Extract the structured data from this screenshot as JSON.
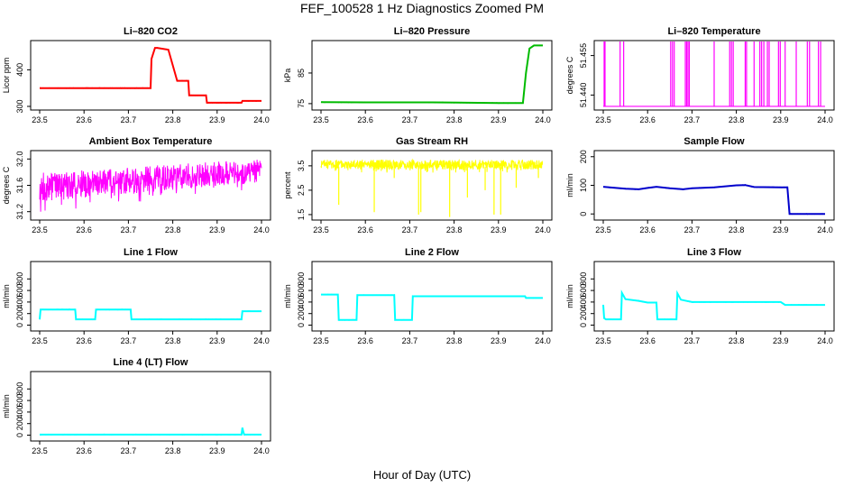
{
  "figure": {
    "title": "FEF_100528  1 Hz Diagnostics Zoomed PM",
    "xlabel": "Hour of Day (UTC)"
  },
  "chart_data": [
    {
      "type": "line",
      "title": "Li–820 CO2",
      "ylabel": "Licor ppm",
      "color": "#ff0000",
      "xlim": [
        23.5,
        24.0
      ],
      "ylim": [
        295,
        475
      ],
      "x_ticks": [
        "23.5",
        "23.6",
        "23.7",
        "23.8",
        "23.9",
        "24.0"
      ],
      "y_ticks": [
        {
          "v": 300,
          "t": "300"
        },
        {
          "v": 400,
          "t": "400"
        }
      ],
      "series": [
        {
          "x": [
            23.5,
            23.75,
            23.752,
            23.76,
            23.765,
            23.79,
            23.81,
            23.812,
            23.835,
            23.837,
            23.875,
            23.877,
            23.955,
            23.957,
            24.0
          ],
          "y": [
            350,
            350,
            430,
            460,
            460,
            455,
            370,
            370,
            370,
            330,
            330,
            310,
            310,
            315,
            315
          ]
        }
      ]
    },
    {
      "type": "line",
      "title": "Li–820 Pressure",
      "ylabel": "kPa",
      "color": "#00bb00",
      "xlim": [
        23.5,
        24.0
      ],
      "ylim": [
        73.5,
        95
      ],
      "x_ticks": [
        "23.5",
        "23.6",
        "23.7",
        "23.8",
        "23.9",
        "24.0"
      ],
      "y_ticks": [
        {
          "v": 75,
          "t": "75"
        },
        {
          "v": 85,
          "t": "85"
        }
      ],
      "series": [
        {
          "x": [
            23.5,
            23.6,
            23.75,
            23.9,
            23.955,
            23.962,
            23.97,
            23.98,
            24.0
          ],
          "y": [
            75.5,
            75.4,
            75.4,
            75.2,
            75.2,
            85,
            93,
            94,
            94
          ]
        }
      ]
    },
    {
      "type": "line",
      "title": "Li–820 Temperature",
      "ylabel": "degrees C",
      "color": "#ff00ff",
      "xlim": [
        23.5,
        24.0
      ],
      "ylim": [
        51.435,
        51.46
      ],
      "x_ticks": [
        "23.5",
        "23.6",
        "23.7",
        "23.8",
        "23.9",
        "24.0"
      ],
      "y_ticks": [
        {
          "v": 51.44,
          "t": "51.440"
        },
        {
          "v": 51.455,
          "t": "51.455"
        }
      ],
      "spike_positions": [
        23.502,
        23.504,
        23.538,
        23.546,
        23.652,
        23.656,
        23.66,
        23.685,
        23.688,
        23.691,
        23.694,
        23.75,
        23.785,
        23.789,
        23.793,
        23.82,
        23.823,
        23.84,
        23.853,
        23.857,
        23.862,
        23.87,
        23.874,
        23.895,
        23.899,
        23.91,
        23.935,
        23.96,
        23.965,
        23.985,
        23.99
      ]
    },
    {
      "type": "line",
      "title": "Ambient Box Temperature",
      "ylabel": "degrees C",
      "color": "#ff00ff",
      "xlim": [
        23.5,
        24.0
      ],
      "ylim": [
        31.1,
        32.1
      ],
      "x_ticks": [
        "23.5",
        "23.6",
        "23.7",
        "23.8",
        "23.9",
        "24.0"
      ],
      "y_ticks": [
        {
          "v": 31.2,
          "t": "31.2"
        },
        {
          "v": 31.6,
          "t": "31.6"
        },
        {
          "v": 32.0,
          "t": "32.0"
        }
      ],
      "noise_band": {
        "start": [
          31.35,
          31.8
        ],
        "end": [
          31.65,
          32.0
        ]
      }
    },
    {
      "type": "line",
      "title": "Gas Stream RH",
      "ylabel": "percent",
      "color": "#ffff00",
      "xlim": [
        23.5,
        24.0
      ],
      "ylim": [
        1.35,
        4.05
      ],
      "x_ticks": [
        "23.5",
        "23.6",
        "23.7",
        "23.8",
        "23.9",
        "24.0"
      ],
      "y_ticks": [
        {
          "v": 1.5,
          "t": "1.5"
        },
        {
          "v": 2.5,
          "t": "2.5"
        },
        {
          "v": 3.5,
          "t": "3.5"
        }
      ],
      "noise_band": {
        "start": [
          3.35,
          3.75
        ],
        "end": [
          3.35,
          3.75
        ]
      },
      "dips": [
        [
          23.54,
          1.9
        ],
        [
          23.62,
          1.6
        ],
        [
          23.665,
          3.0
        ],
        [
          23.72,
          1.5
        ],
        [
          23.725,
          1.6
        ],
        [
          23.79,
          1.4
        ],
        [
          23.83,
          2.2
        ],
        [
          23.87,
          2.5
        ],
        [
          23.89,
          1.5
        ],
        [
          23.905,
          1.5
        ],
        [
          23.94,
          2.6
        ],
        [
          23.99,
          3.0
        ]
      ]
    },
    {
      "type": "line",
      "title": "Sample Flow",
      "ylabel": "ml/min",
      "color": "#0000cc",
      "xlim": [
        23.5,
        24.0
      ],
      "ylim": [
        -15,
        215
      ],
      "x_ticks": [
        "23.5",
        "23.6",
        "23.7",
        "23.8",
        "23.9",
        "24.0"
      ],
      "y_ticks": [
        {
          "v": 0,
          "t": "0"
        },
        {
          "v": 100,
          "t": "100"
        },
        {
          "v": 200,
          "t": "200"
        }
      ],
      "series": [
        {
          "x": [
            23.5,
            23.52,
            23.55,
            23.58,
            23.6,
            23.62,
            23.65,
            23.68,
            23.7,
            23.75,
            23.8,
            23.82,
            23.84,
            23.9,
            23.915,
            23.92,
            24.0
          ],
          "y": [
            95,
            92,
            88,
            86,
            91,
            95,
            90,
            86,
            90,
            93,
            100,
            101,
            94,
            93,
            93,
            0,
            0
          ]
        }
      ]
    },
    {
      "type": "line",
      "title": "Line 1 Flow",
      "ylabel": "ml/min",
      "color": "#00ffff",
      "xlim": [
        23.5,
        24.0
      ],
      "ylim": [
        -70,
        1070
      ],
      "x_ticks": [
        "23.5",
        "23.6",
        "23.7",
        "23.8",
        "23.9",
        "24.0"
      ],
      "y_ticks": [
        {
          "v": 0,
          "t": "0"
        },
        {
          "v": 200,
          "t": "200"
        },
        {
          "v": 400,
          "t": "400"
        },
        {
          "v": 600,
          "t": "600"
        },
        {
          "v": 800,
          "t": "800"
        }
      ],
      "series": [
        {
          "x": [
            23.5,
            23.502,
            23.58,
            23.582,
            23.625,
            23.627,
            23.705,
            23.707,
            23.955,
            23.957,
            24.0
          ],
          "y": [
            100,
            270,
            270,
            100,
            100,
            270,
            270,
            100,
            100,
            240,
            240
          ]
        }
      ]
    },
    {
      "type": "line",
      "title": "Line 2 Flow",
      "ylabel": "ml/min",
      "color": "#00ffff",
      "xlim": [
        23.5,
        24.0
      ],
      "ylim": [
        -70,
        1070
      ],
      "x_ticks": [
        "23.5",
        "23.6",
        "23.7",
        "23.8",
        "23.9",
        "24.0"
      ],
      "y_ticks": [
        {
          "v": 0,
          "t": "0"
        },
        {
          "v": 200,
          "t": "200"
        },
        {
          "v": 400,
          "t": "400"
        },
        {
          "v": 600,
          "t": "600"
        },
        {
          "v": 800,
          "t": "800"
        }
      ],
      "series": [
        {
          "x": [
            23.5,
            23.538,
            23.54,
            23.58,
            23.582,
            23.665,
            23.667,
            23.705,
            23.707,
            23.96,
            23.962,
            24.0
          ],
          "y": [
            530,
            530,
            90,
            90,
            520,
            520,
            90,
            90,
            500,
            500,
            470,
            470
          ]
        }
      ]
    },
    {
      "type": "line",
      "title": "Line 3 Flow",
      "ylabel": "ml/min",
      "color": "#00ffff",
      "xlim": [
        23.5,
        24.0
      ],
      "ylim": [
        -70,
        1070
      ],
      "x_ticks": [
        "23.5",
        "23.6",
        "23.7",
        "23.8",
        "23.9",
        "24.0"
      ],
      "y_ticks": [
        {
          "v": 0,
          "t": "0"
        },
        {
          "v": 200,
          "t": "200"
        },
        {
          "v": 400,
          "t": "400"
        },
        {
          "v": 600,
          "t": "600"
        },
        {
          "v": 800,
          "t": "800"
        }
      ],
      "series": [
        {
          "x": [
            23.5,
            23.502,
            23.506,
            23.54,
            23.542,
            23.55,
            23.58,
            23.6,
            23.62,
            23.622,
            23.665,
            23.667,
            23.675,
            23.7,
            23.8,
            23.9,
            23.91,
            24.0
          ],
          "y": [
            350,
            120,
            100,
            100,
            560,
            450,
            420,
            390,
            390,
            100,
            100,
            550,
            440,
            400,
            400,
            400,
            350,
            350
          ]
        }
      ]
    },
    {
      "type": "line",
      "title": "Line 4 (LT) Flow",
      "ylabel": "ml/min",
      "color": "#00ffff",
      "xlim": [
        23.5,
        24.0
      ],
      "ylim": [
        -70,
        1070
      ],
      "x_ticks": [
        "23.5",
        "23.6",
        "23.7",
        "23.8",
        "23.9",
        "24.0"
      ],
      "y_ticks": [
        {
          "v": 0,
          "t": "0"
        },
        {
          "v": 200,
          "t": "200"
        },
        {
          "v": 400,
          "t": "400"
        },
        {
          "v": 600,
          "t": "600"
        },
        {
          "v": 800,
          "t": "800"
        }
      ],
      "series": [
        {
          "x": [
            23.5,
            23.955,
            23.957,
            23.959,
            23.961,
            24.0
          ],
          "y": [
            10,
            10,
            130,
            60,
            10,
            10
          ]
        }
      ]
    }
  ]
}
